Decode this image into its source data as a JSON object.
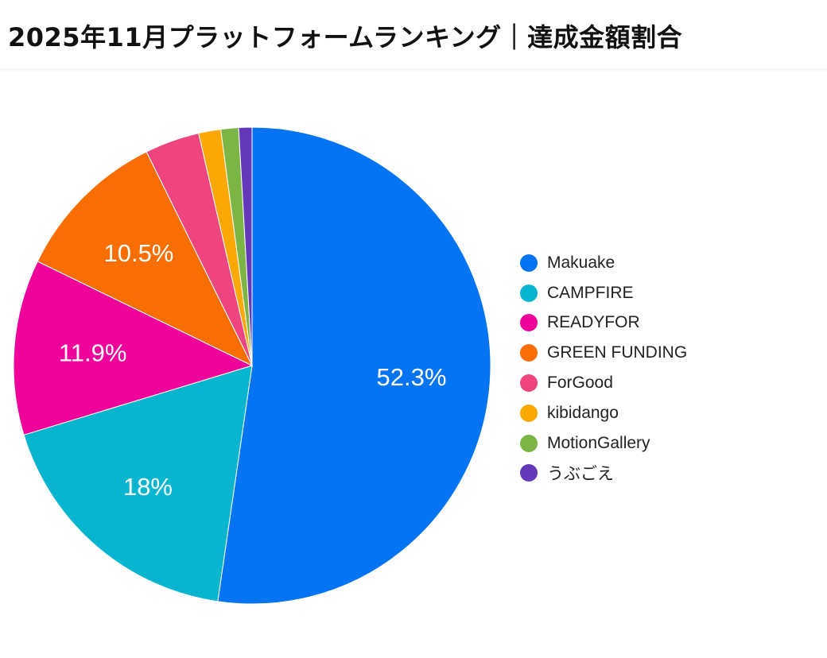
{
  "chart_data": {
    "type": "pie",
    "title": "2025年11月プラットフォームランキング｜達成金額割合",
    "categories": [
      "Makuake",
      "CAMPFIRE",
      "READYFOR",
      "GREEN FUNDING",
      "ForGood",
      "kibidango",
      "MotionGallery",
      "うぶごえ"
    ],
    "values": [
      52.3,
      18,
      11.9,
      10.5,
      3.7,
      1.5,
      1.2,
      0.9
    ],
    "data_labels": [
      "52.3%",
      "18%",
      "11.9%",
      "10.5%",
      "",
      "",
      "",
      ""
    ],
    "colors": [
      "#0474F3",
      "#08B5CE",
      "#F0039A",
      "#F96E03",
      "#EE4580",
      "#FBA705",
      "#7DB446",
      "#6439B9"
    ],
    "start_angle_deg": 0,
    "direction": "clockwise",
    "legend_position": "right"
  }
}
